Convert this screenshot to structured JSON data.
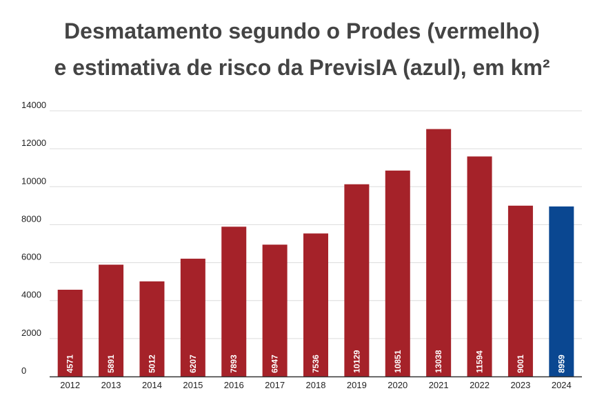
{
  "chart_data": {
    "type": "bar",
    "title_lines": [
      "Desmatamento segundo o Prodes (vermelho)",
      "e estimativa de risco da PrevisIA (azul), em km²"
    ],
    "xlabel": "",
    "ylabel": "",
    "ylim": [
      0,
      14000
    ],
    "yticks": [
      0,
      2000,
      4000,
      6000,
      8000,
      10000,
      12000,
      14000
    ],
    "grid": true,
    "legend": "none",
    "categories": [
      "2012",
      "2013",
      "2014",
      "2015",
      "2016",
      "2017",
      "2018",
      "2019",
      "2020",
      "2021",
      "2022",
      "2023",
      "2024"
    ],
    "series": [
      {
        "values": [
          4571,
          5891,
          5012,
          6207,
          7893,
          6947,
          7536,
          10129,
          10851,
          13038,
          11594,
          9001,
          8959
        ]
      }
    ],
    "bar_colors": [
      "#a52229",
      "#a52229",
      "#a52229",
      "#a52229",
      "#a52229",
      "#a52229",
      "#a52229",
      "#a52229",
      "#a52229",
      "#a52229",
      "#a52229",
      "#a52229",
      "#0a4791"
    ],
    "colors": {
      "prodes": "#a52229",
      "previsia": "#0a4791",
      "grid": "#dcdcdc",
      "axis": "#333333",
      "title": "#444444"
    }
  }
}
